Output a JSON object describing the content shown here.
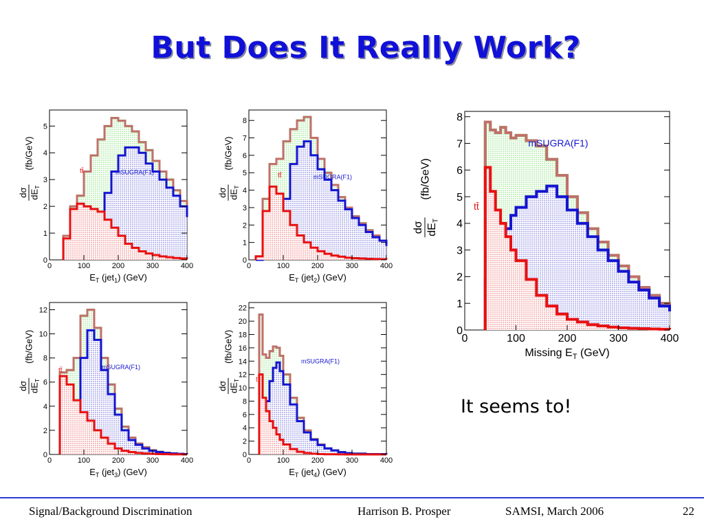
{
  "slide": {
    "title": "But Does It Really Work?",
    "callout": "It seems to!"
  },
  "footer": {
    "left": "Signal/Background Discrimination",
    "author": "Harrison B. Prosper",
    "venue": "SAMSI, March 2006",
    "page": "22"
  },
  "colors": {
    "ttbar": "#e81010",
    "ttbar_fill": "#f6bcbc",
    "msugra": "#1414d0",
    "msugra_fill": "#bcbcee",
    "total": "#c0706a",
    "total_edge": "#20e020",
    "total_fill": "#c6f0c0",
    "title": "#1010d8"
  },
  "chart_data": [
    {
      "type": "area",
      "xlabel": "E_T (jet_1) (GeV)",
      "ylabel": "dσ/dE_T (fb/GeV)",
      "xlim": [
        0,
        400
      ],
      "ylim": [
        0,
        5.6
      ],
      "xticks": [
        0,
        100,
        200,
        300,
        400
      ],
      "yticks": [
        0,
        1,
        2,
        3,
        4,
        5
      ],
      "annotations": [
        "tt̄",
        "mSUGRA(F1)"
      ],
      "x": [
        40,
        60,
        80,
        100,
        120,
        140,
        160,
        180,
        200,
        220,
        240,
        260,
        280,
        300,
        320,
        340,
        360,
        380,
        400
      ],
      "series": [
        {
          "name": "tt̄",
          "values": [
            0.8,
            1.9,
            2.1,
            2.0,
            1.9,
            1.8,
            1.5,
            1.2,
            0.9,
            0.6,
            0.45,
            0.32,
            0.24,
            0.18,
            0.13,
            0.1,
            0.07,
            0.05,
            0.04
          ]
        },
        {
          "name": "mSUGRA(F1)",
          "values": [
            0.05,
            0.1,
            0.25,
            0.5,
            0.9,
            1.6,
            2.5,
            3.3,
            3.9,
            4.2,
            4.2,
            4.0,
            3.6,
            3.3,
            3.0,
            2.7,
            2.4,
            2.0,
            1.6
          ]
        },
        {
          "name": "total",
          "values": [
            0.9,
            2.0,
            2.4,
            3.3,
            3.9,
            4.5,
            5.0,
            5.3,
            5.2,
            5.0,
            4.8,
            4.4,
            4.1,
            3.7,
            3.3,
            3.0,
            2.6,
            2.2,
            1.8
          ]
        }
      ]
    },
    {
      "type": "area",
      "xlabel": "E_T (jet_2) (GeV)",
      "ylabel": "dσ/dE_T (fb/GeV)",
      "xlim": [
        0,
        400
      ],
      "ylim": [
        0,
        8.6
      ],
      "xticks": [
        0,
        100,
        200,
        300,
        400
      ],
      "yticks": [
        0,
        1,
        2,
        3,
        4,
        5,
        6,
        7,
        8
      ],
      "annotations": [
        "tt̄",
        "mSUGRA(F1)"
      ],
      "x": [
        20,
        40,
        60,
        80,
        100,
        120,
        140,
        160,
        180,
        200,
        220,
        240,
        260,
        280,
        300,
        320,
        340,
        360,
        380,
        400
      ],
      "series": [
        {
          "name": "tt̄",
          "values": [
            0.2,
            2.8,
            4.2,
            3.8,
            2.8,
            2.0,
            1.4,
            1.0,
            0.7,
            0.5,
            0.35,
            0.25,
            0.18,
            0.13,
            0.1,
            0.08,
            0.06,
            0.05,
            0.04,
            0.03
          ]
        },
        {
          "name": "mSUGRA(F1)",
          "values": [
            0.0,
            0.5,
            0.6,
            1.5,
            3.5,
            5.5,
            6.5,
            6.8,
            6.0,
            5.2,
            4.6,
            4.0,
            3.4,
            2.9,
            2.4,
            2.0,
            1.6,
            1.3,
            1.1,
            0.8
          ]
        },
        {
          "name": "total",
          "values": [
            0.2,
            3.5,
            5.5,
            5.8,
            6.8,
            7.5,
            8.0,
            8.2,
            7.0,
            5.8,
            5.0,
            4.3,
            3.6,
            3.0,
            2.5,
            2.1,
            1.7,
            1.4,
            1.1,
            0.8
          ]
        }
      ]
    },
    {
      "type": "area",
      "xlabel": "E_T (jet_3) (GeV)",
      "ylabel": "dσ/dE_T (fb/GeV)",
      "xlim": [
        0,
        400
      ],
      "ylim": [
        0,
        12.6
      ],
      "xticks": [
        0,
        100,
        200,
        300,
        400
      ],
      "yticks": [
        0,
        2,
        4,
        6,
        8,
        10,
        12
      ],
      "annotations": [
        "tt̄",
        "mSUGRA(F1)"
      ],
      "x": [
        30,
        50,
        70,
        90,
        110,
        130,
        150,
        170,
        190,
        210,
        230,
        250,
        270,
        290,
        310,
        330,
        350,
        370,
        390,
        400
      ],
      "series": [
        {
          "name": "tt̄",
          "values": [
            6.5,
            5.8,
            4.5,
            3.5,
            2.8,
            2.0,
            1.4,
            0.9,
            0.5,
            0.3,
            0.2,
            0.12,
            0.08,
            0.05,
            0.03,
            0.02,
            0.01,
            0.01,
            0.0,
            0.0
          ]
        },
        {
          "name": "mSUGRA(F1)",
          "values": [
            0.3,
            1.0,
            3.5,
            8.0,
            10.3,
            9.5,
            7.0,
            5.0,
            3.3,
            2.0,
            1.2,
            0.8,
            0.5,
            0.3,
            0.2,
            0.12,
            0.08,
            0.05,
            0.03,
            0.02
          ]
        },
        {
          "name": "total",
          "values": [
            6.8,
            7.0,
            8.0,
            11.5,
            12.0,
            10.5,
            8.0,
            5.8,
            3.8,
            2.3,
            1.4,
            0.9,
            0.6,
            0.35,
            0.22,
            0.14,
            0.09,
            0.06,
            0.03,
            0.02
          ]
        }
      ]
    },
    {
      "type": "area",
      "xlabel": "E_T (jet_4) (GeV)",
      "ylabel": "dσ/dE_T (fb/GeV)",
      "xlim": [
        0,
        400
      ],
      "ylim": [
        0,
        22.8
      ],
      "xticks": [
        0,
        100,
        200,
        300,
        400
      ],
      "yticks": [
        0,
        2,
        4,
        6,
        8,
        10,
        12,
        14,
        16,
        18,
        20,
        22
      ],
      "annotations": [
        "tt̄",
        "mSUGRA(F1)"
      ],
      "x": [
        30,
        40,
        50,
        60,
        70,
        80,
        90,
        100,
        120,
        140,
        160,
        180,
        200,
        220,
        240,
        260,
        280,
        300,
        340,
        400
      ],
      "series": [
        {
          "name": "tt̄",
          "values": [
            12.0,
            8.5,
            6.5,
            5.0,
            4.0,
            3.0,
            2.2,
            1.5,
            0.8,
            0.4,
            0.2,
            0.1,
            0.05,
            0.03,
            0.02,
            0.01,
            0.0,
            0.0,
            0.0,
            0.0
          ]
        },
        {
          "name": "mSUGRA(F1)",
          "values": [
            0.2,
            3.0,
            8.0,
            11.0,
            13.0,
            13.8,
            12.5,
            10.5,
            7.5,
            5.0,
            3.3,
            2.2,
            1.4,
            0.9,
            0.6,
            0.35,
            0.2,
            0.12,
            0.05,
            0.02
          ]
        },
        {
          "name": "total",
          "values": [
            21.0,
            15.0,
            14.5,
            15.5,
            16.2,
            16.0,
            14.8,
            12.0,
            8.5,
            5.5,
            3.6,
            2.3,
            1.5,
            0.9,
            0.6,
            0.35,
            0.2,
            0.12,
            0.05,
            0.02
          ]
        }
      ]
    },
    {
      "type": "area",
      "xlabel": "Missing E_T (GeV)",
      "ylabel": "dσ/dE_T (fb/GeV)",
      "xlim": [
        0,
        400
      ],
      "ylim": [
        0,
        8.2
      ],
      "xticks": [
        0,
        100,
        200,
        300,
        400
      ],
      "yticks": [
        0,
        1,
        2,
        3,
        4,
        5,
        6,
        7,
        8
      ],
      "annotations": [
        "tt̄",
        "mSUGRA(F1)"
      ],
      "x": [
        40,
        50,
        60,
        70,
        80,
        90,
        100,
        120,
        140,
        160,
        180,
        200,
        220,
        240,
        260,
        280,
        300,
        320,
        340,
        360,
        380,
        400
      ],
      "series": [
        {
          "name": "tt̄",
          "values": [
            6.1,
            5.2,
            4.5,
            4.0,
            3.5,
            3.0,
            2.6,
            1.9,
            1.3,
            0.9,
            0.6,
            0.4,
            0.3,
            0.2,
            0.15,
            0.11,
            0.08,
            0.06,
            0.05,
            0.04,
            0.03,
            0.02
          ]
        },
        {
          "name": "mSUGRA(F1)",
          "values": [
            1.9,
            2.2,
            2.7,
            3.3,
            3.8,
            4.3,
            4.6,
            5.0,
            5.2,
            5.4,
            5.0,
            4.5,
            4.0,
            3.5,
            3.0,
            2.6,
            2.2,
            1.8,
            1.5,
            1.2,
            0.9,
            0.7
          ]
        },
        {
          "name": "total",
          "values": [
            7.8,
            7.5,
            7.4,
            7.6,
            7.4,
            7.2,
            7.3,
            7.1,
            6.9,
            6.4,
            5.8,
            5.0,
            4.4,
            3.8,
            3.3,
            2.8,
            2.4,
            2.0,
            1.6,
            1.3,
            1.0,
            0.8
          ]
        }
      ]
    }
  ]
}
